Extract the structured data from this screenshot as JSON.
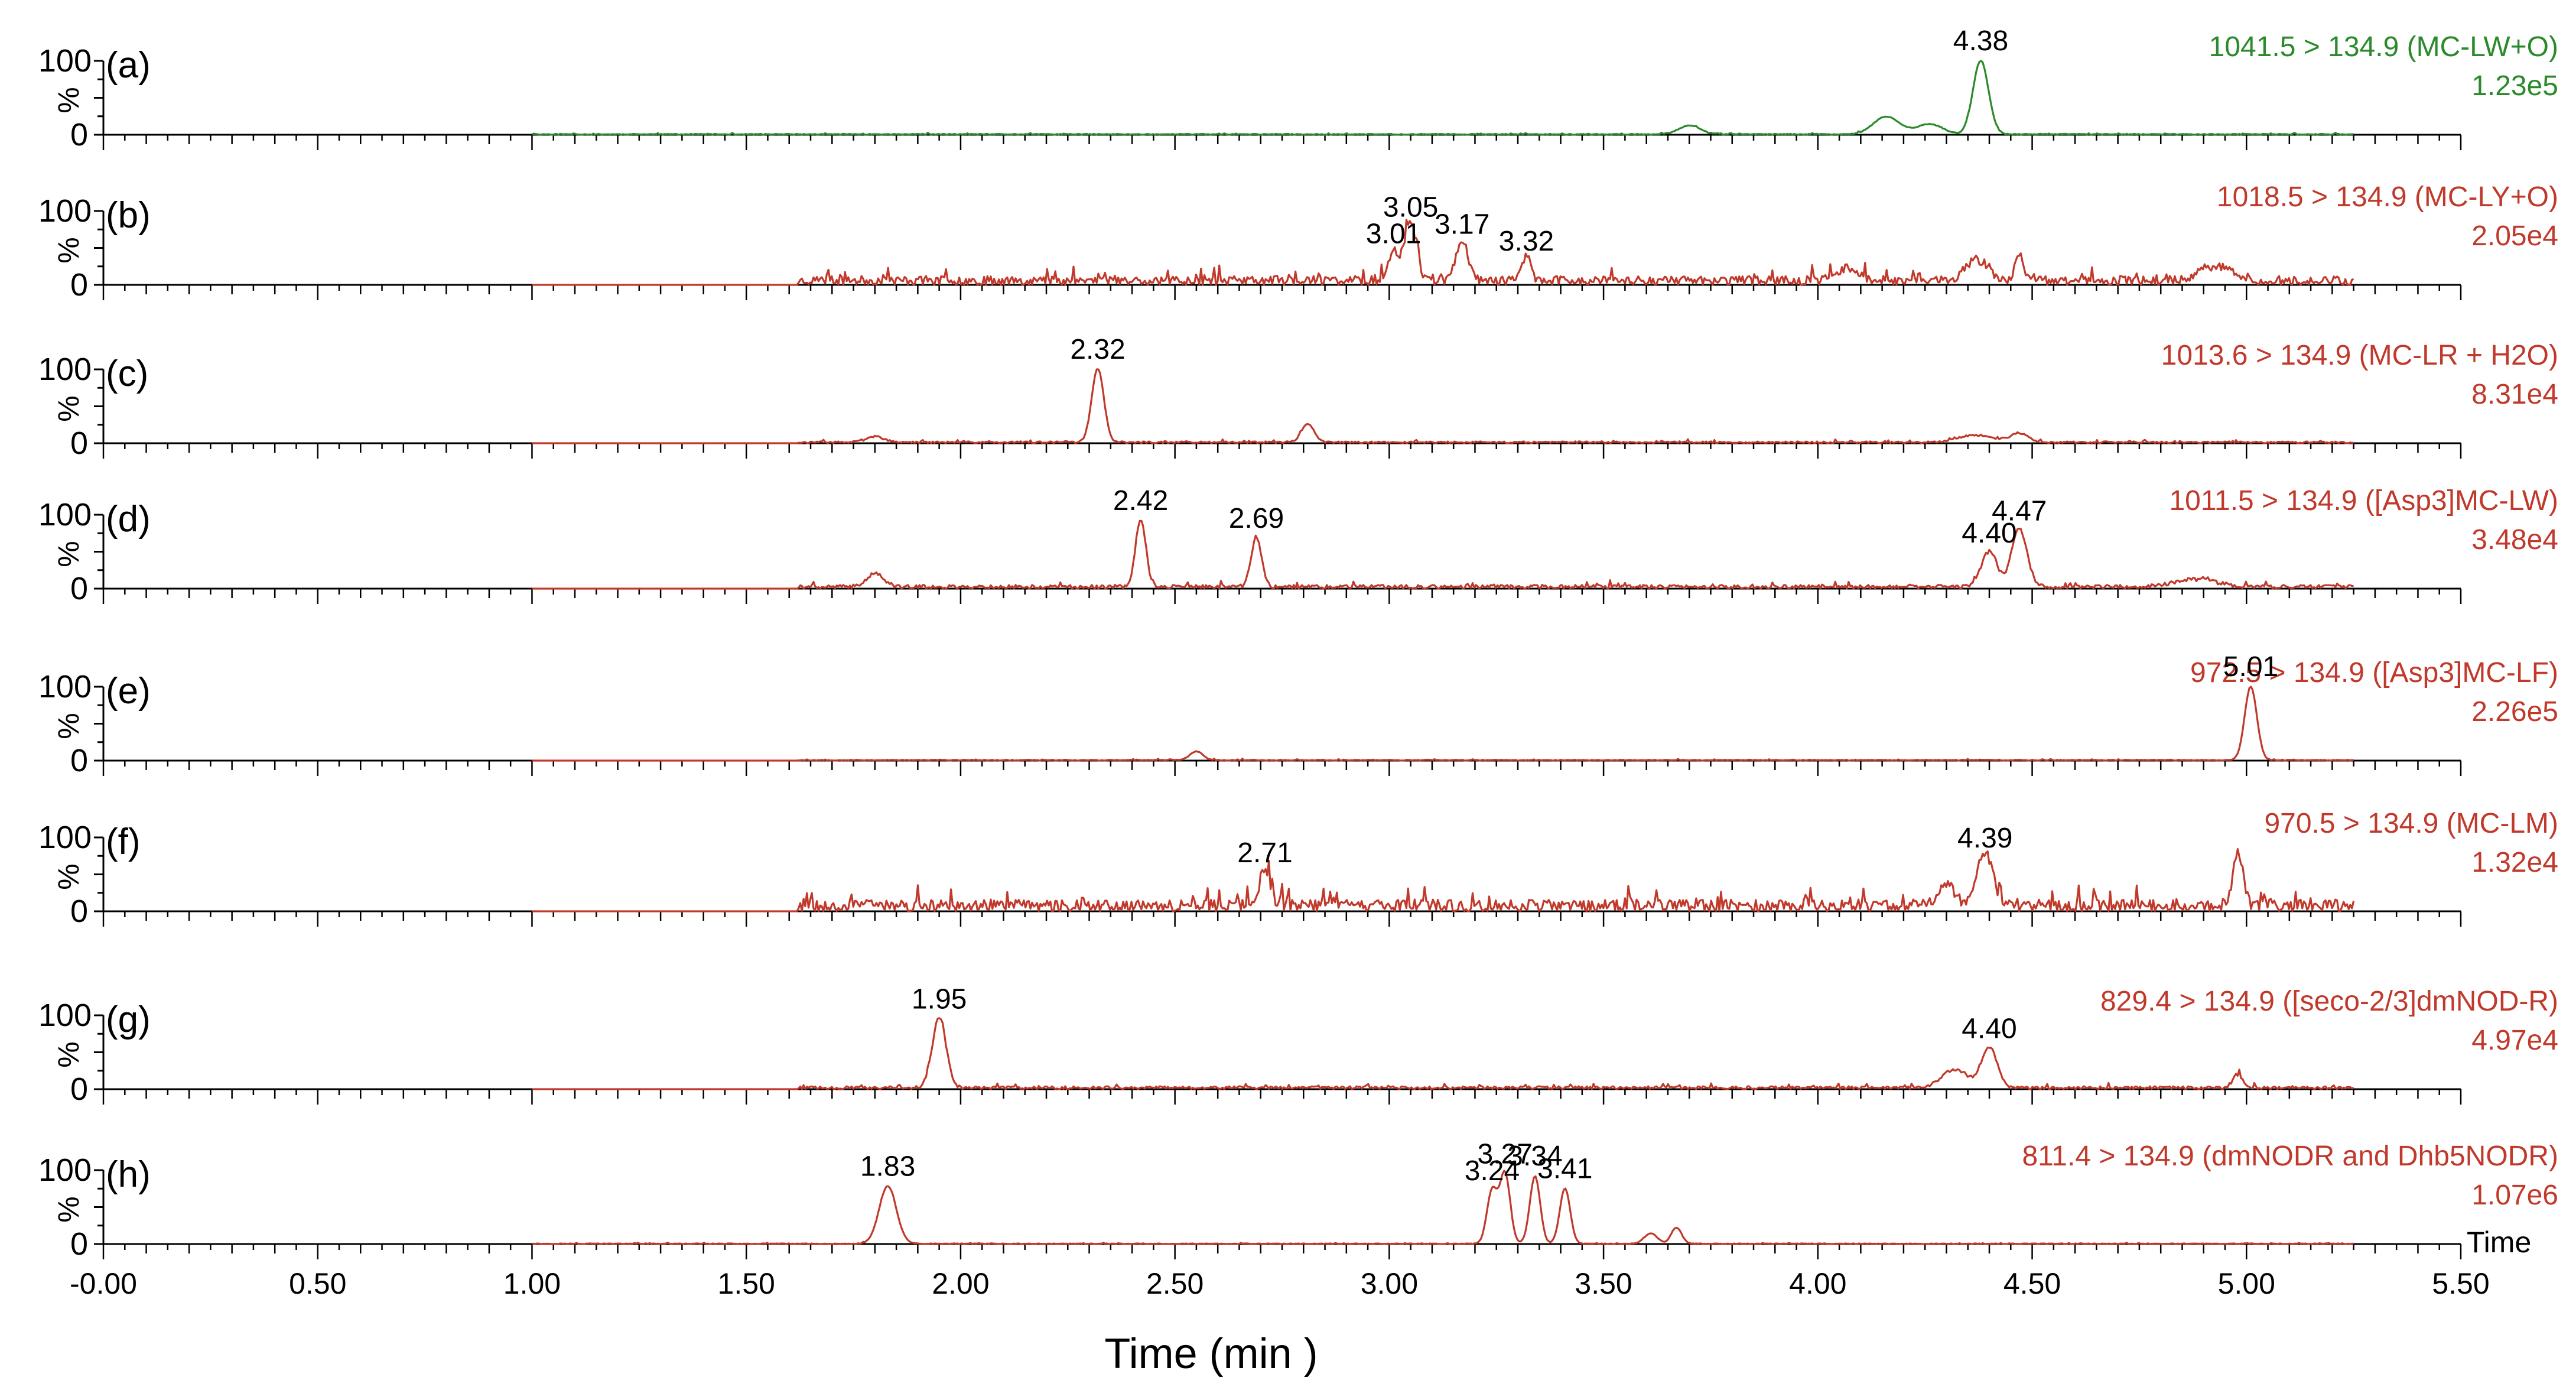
{
  "chart_data": {
    "type": "line",
    "title": "",
    "xlabel": "Time (min )",
    "x_axis_end_label": "Time",
    "xlim": [
      0,
      5.5
    ],
    "x_tick_labels": [
      "-0.00",
      "0.50",
      "1.00",
      "1.50",
      "2.00",
      "2.50",
      "3.00",
      "3.50",
      "4.00",
      "4.50",
      "5.00",
      "5.50"
    ],
    "x_tick_values": [
      0,
      0.5,
      1.0,
      1.5,
      2.0,
      2.5,
      3.0,
      3.5,
      4.0,
      4.5,
      5.0,
      5.5
    ],
    "y_axis": {
      "unit_label": "%",
      "top_label": "100",
      "bottom_label": "0",
      "ylim": [
        0,
        100
      ]
    },
    "trace_x_range": [
      1.0,
      5.25
    ],
    "panels": [
      {
        "letter": "(a)",
        "channel": "1041.5 > 134.9 (MC-LW+O)",
        "intensity": "1.23e5",
        "color": "#2b8a2b",
        "noise_start": 1.0,
        "noise_amp": 1.2,
        "seed": 11,
        "peaks": [
          {
            "rt": 3.7,
            "height": 12,
            "width": 0.025,
            "label": ""
          },
          {
            "rt": 4.16,
            "height": 24,
            "width": 0.03,
            "label": ""
          },
          {
            "rt": 4.26,
            "height": 14,
            "width": 0.03,
            "label": ""
          },
          {
            "rt": 4.38,
            "height": 100,
            "width": 0.018,
            "label": "4.38"
          }
        ]
      },
      {
        "letter": "(b)",
        "channel": "1018.5 > 134.9 (MC-LY+O)",
        "intensity": "2.05e4",
        "color": "#c0392b",
        "noise_start": 1.62,
        "noise_amp": 12,
        "seed": 23,
        "peaks": [
          {
            "rt": 3.01,
            "height": 42,
            "width": 0.012,
            "label": "3.01"
          },
          {
            "rt": 3.05,
            "height": 78,
            "width": 0.014,
            "label": "3.05"
          },
          {
            "rt": 3.17,
            "height": 55,
            "width": 0.014,
            "label": "3.17"
          },
          {
            "rt": 3.32,
            "height": 32,
            "width": 0.01,
            "label": "3.32"
          },
          {
            "rt": 4.07,
            "height": 18,
            "width": 0.025,
            "label": ""
          },
          {
            "rt": 4.37,
            "height": 28,
            "width": 0.025,
            "label": ""
          },
          {
            "rt": 4.47,
            "height": 34,
            "width": 0.01,
            "label": ""
          },
          {
            "rt": 4.93,
            "height": 18,
            "width": 0.04,
            "label": ""
          }
        ]
      },
      {
        "letter": "(c)",
        "channel": "1013.6 > 134.9 (MC-LR + H2O)",
        "intensity": "8.31e4",
        "color": "#c0392b",
        "noise_start": 1.62,
        "noise_amp": 2.5,
        "seed": 37,
        "peaks": [
          {
            "rt": 1.8,
            "height": 8,
            "width": 0.02,
            "label": ""
          },
          {
            "rt": 2.32,
            "height": 100,
            "width": 0.014,
            "label": "2.32"
          },
          {
            "rt": 2.81,
            "height": 24,
            "width": 0.015,
            "label": ""
          },
          {
            "rt": 4.37,
            "height": 10,
            "width": 0.04,
            "label": ""
          },
          {
            "rt": 4.47,
            "height": 12,
            "width": 0.02,
            "label": ""
          }
        ]
      },
      {
        "letter": "(d)",
        "channel": "1011.5 > 134.9 ([Asp3]MC-LW)",
        "intensity": "3.48e4",
        "color": "#c0392b",
        "noise_start": 1.62,
        "noise_amp": 5,
        "seed": 41,
        "peaks": [
          {
            "rt": 1.8,
            "height": 18,
            "width": 0.02,
            "label": ""
          },
          {
            "rt": 2.42,
            "height": 92,
            "width": 0.012,
            "label": "2.42"
          },
          {
            "rt": 2.69,
            "height": 68,
            "width": 0.012,
            "label": "2.69"
          },
          {
            "rt": 4.4,
            "height": 48,
            "width": 0.018,
            "label": "4.40"
          },
          {
            "rt": 4.47,
            "height": 78,
            "width": 0.018,
            "label": "4.47"
          },
          {
            "rt": 4.88,
            "height": 10,
            "width": 0.05,
            "label": ""
          }
        ]
      },
      {
        "letter": "(e)",
        "channel": "972.5 > 134.9 ([Asp3]MC-LF)",
        "intensity": "2.26e5",
        "color": "#c0392b",
        "noise_start": 1.62,
        "noise_amp": 1.2,
        "seed": 53,
        "peaks": [
          {
            "rt": 2.55,
            "height": 12,
            "width": 0.015,
            "label": ""
          },
          {
            "rt": 5.01,
            "height": 100,
            "width": 0.014,
            "label": "5.01"
          }
        ]
      },
      {
        "letter": "(f)",
        "channel": "970.5 > 134.9 (MC-LM)",
        "intensity": "1.32e4",
        "color": "#c0392b",
        "noise_start": 1.62,
        "noise_amp": 16,
        "seed": 67,
        "peaks": [
          {
            "rt": 2.71,
            "height": 52,
            "width": 0.012,
            "label": "2.71"
          },
          {
            "rt": 4.3,
            "height": 30,
            "width": 0.02,
            "label": ""
          },
          {
            "rt": 4.39,
            "height": 72,
            "width": 0.018,
            "label": "4.39"
          },
          {
            "rt": 4.98,
            "height": 70,
            "width": 0.012,
            "label": ""
          }
        ]
      },
      {
        "letter": "(g)",
        "channel": "829.4 > 134.9 ([seco-2/3]dmNOD-R)",
        "intensity": "4.97e4",
        "color": "#c0392b",
        "noise_start": 1.62,
        "noise_amp": 4,
        "seed": 79,
        "peaks": [
          {
            "rt": 1.95,
            "height": 95,
            "width": 0.016,
            "label": "1.95"
          },
          {
            "rt": 4.32,
            "height": 25,
            "width": 0.03,
            "label": ""
          },
          {
            "rt": 4.4,
            "height": 55,
            "width": 0.018,
            "label": "4.40"
          },
          {
            "rt": 4.98,
            "height": 18,
            "width": 0.012,
            "label": ""
          }
        ]
      },
      {
        "letter": "(h)",
        "channel": "811.4 > 134.9 (dmNODR and Dhb5NODR)",
        "intensity": "1.07e6",
        "color": "#c0392b",
        "noise_start": 1.0,
        "noise_amp": 0.8,
        "seed": 97,
        "peaks": [
          {
            "rt": 1.83,
            "height": 78,
            "width": 0.02,
            "label": "1.83"
          },
          {
            "rt": 3.24,
            "height": 72,
            "width": 0.012,
            "label": "3.24"
          },
          {
            "rt": 3.27,
            "height": 95,
            "width": 0.012,
            "label": "3.27"
          },
          {
            "rt": 3.34,
            "height": 92,
            "width": 0.012,
            "label": "3.34"
          },
          {
            "rt": 3.41,
            "height": 75,
            "width": 0.012,
            "label": "3.41"
          },
          {
            "rt": 3.61,
            "height": 14,
            "width": 0.015,
            "label": ""
          },
          {
            "rt": 3.67,
            "height": 22,
            "width": 0.012,
            "label": ""
          }
        ]
      }
    ]
  }
}
